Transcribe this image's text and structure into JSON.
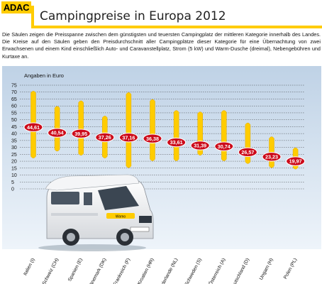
{
  "header": {
    "logo": "ADAC",
    "title": "Campingpreise in Europa 2012",
    "description": "Die Säulen zeigen die Preisspanne zwischen dem günstigsten und teuersten Campingplatz der mittleren Kategorie innerhalb des Landes. Die Kreise auf den Säulen geben den Preisdurchschnitt aller Campingplätze dieser Kategorie für eine Übernachtung von zwei Erwachsenen und einem Kind einschließlich Auto- und Caravanstellplatz, Strom (5 kW) und Warm-Dusche (dreimal), Nebengebühren und Kurtaxe an."
  },
  "colors": {
    "accent": "#ffcc00",
    "marker": "#cc0a1a",
    "sky_top": "#bfd2e6",
    "sky_bottom": "#eef4fa"
  },
  "chart_data": {
    "type": "range-bar",
    "ylabel": "Angaben in Euro",
    "ylim": [
      0,
      75
    ],
    "yticks": [
      0,
      5,
      10,
      15,
      20,
      25,
      30,
      35,
      40,
      45,
      50,
      55,
      60,
      65,
      70,
      75
    ],
    "grid": true,
    "categories": [
      "Italien (I)",
      "Schweiz (CH)",
      "Spanien (E)",
      "Dänemark (DK)",
      "Frankreich (F)",
      "Kroatien (HR)",
      "Niederlande (NL)",
      "Schweden (S)",
      "Österreich (A)",
      "Deutschland (D)",
      "Ungarn (H)",
      "Polen (PL)"
    ],
    "min": [
      22,
      27,
      24,
      22,
      15,
      20,
      20,
      24,
      20,
      18,
      15,
      14
    ],
    "max": [
      71,
      60,
      64,
      53,
      70,
      65,
      57,
      56,
      57,
      48,
      38,
      30
    ],
    "average": [
      44.61,
      40.54,
      39.95,
      37.26,
      37.16,
      36.38,
      33.61,
      31.39,
      30.74,
      26.57,
      23.23,
      19.97
    ],
    "average_labels": [
      "44,61",
      "40,54",
      "39,95",
      "37,26",
      "37,16",
      "36,38",
      "33,61",
      "31,39",
      "30,74",
      "26,57",
      "23,23",
      "19,97"
    ]
  }
}
